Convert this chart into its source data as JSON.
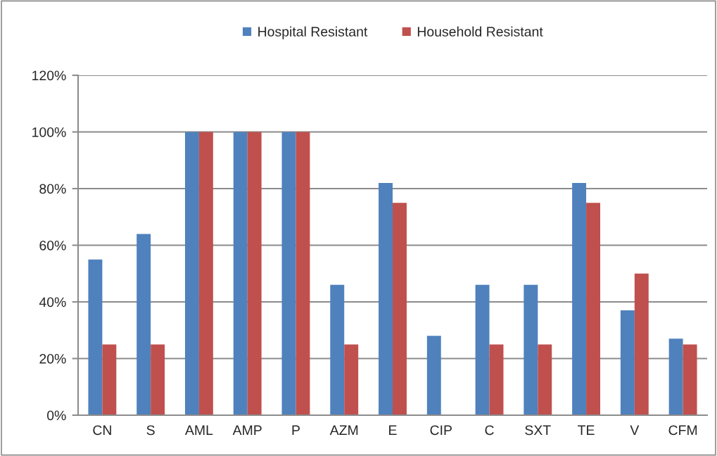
{
  "chart_data": {
    "type": "bar",
    "categories": [
      "CN",
      "S",
      "AML",
      "AMP",
      "P",
      "AZM",
      "E",
      "CIP",
      "C",
      "SXT",
      "TE",
      "V",
      "CFM"
    ],
    "series": [
      {
        "name": "Hospital Resistant",
        "color": "#4f81bd",
        "values": [
          55,
          64,
          100,
          100,
          100,
          46,
          82,
          28,
          46,
          46,
          82,
          37,
          27
        ]
      },
      {
        "name": "Household Resistant",
        "color": "#c0504d",
        "values": [
          25,
          25,
          100,
          100,
          100,
          25,
          75,
          0,
          25,
          25,
          75,
          50,
          25
        ]
      }
    ],
    "ylim": [
      0,
      120
    ],
    "yticks": [
      {
        "value": 0,
        "label": "0%"
      },
      {
        "value": 20,
        "label": "20%"
      },
      {
        "value": 40,
        "label": "40%"
      },
      {
        "value": 60,
        "label": "60%"
      },
      {
        "value": 80,
        "label": "80%"
      },
      {
        "value": 100,
        "label": "100%"
      },
      {
        "value": 120,
        "label": "120%"
      }
    ],
    "grid": "y",
    "legend": "top"
  }
}
